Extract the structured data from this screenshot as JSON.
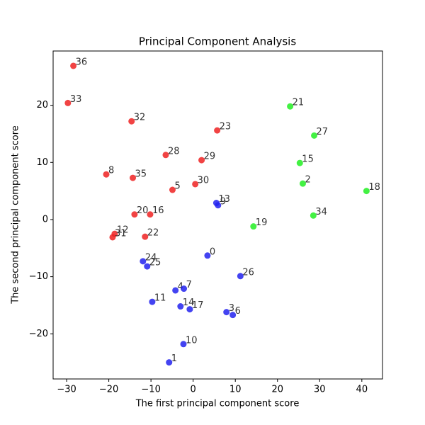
{
  "chart_data": {
    "type": "scatter",
    "title": "Principal Component Analysis",
    "x_label": "The first principal component score",
    "y_label": "The second principal component score",
    "xlim": [
      -33.2,
      44.9
    ],
    "ylim": [
      -27.9,
      29.5
    ],
    "xticks": [
      {
        "value": -30,
        "label": "−30"
      },
      {
        "value": -20,
        "label": "−20"
      },
      {
        "value": -10,
        "label": "−10"
      },
      0,
      10,
      20,
      30,
      40
    ],
    "yticks": [
      {
        "value": -20,
        "label": "−20"
      },
      {
        "value": -10,
        "label": "−10"
      },
      0,
      10,
      20
    ],
    "series": [
      {
        "color": "#ee2222",
        "labels": [
          "36",
          "33",
          "32",
          "23",
          "28",
          "29",
          "8",
          "35",
          "5",
          "30",
          "20",
          "16",
          "12",
          "31",
          "22"
        ],
        "x": [
          -28.4,
          -29.7,
          -14.6,
          5.7,
          -6.5,
          2.0,
          -20.6,
          -14.3,
          -4.9,
          0.5,
          -13.9,
          -10.2,
          -18.6,
          -19.1,
          -11.4
        ],
        "values": [
          26.9,
          20.4,
          17.2,
          15.6,
          11.3,
          10.4,
          7.9,
          7.3,
          5.2,
          6.2,
          0.9,
          0.9,
          -2.5,
          -3.1,
          -3.0
        ]
      },
      {
        "color": "#22ee22",
        "labels": [
          "21",
          "27",
          "15",
          "2",
          "18",
          "34",
          "19"
        ],
        "x": [
          23.0,
          28.7,
          25.3,
          26.0,
          41.1,
          28.5,
          14.3
        ],
        "values": [
          19.8,
          14.7,
          9.9,
          6.3,
          5.0,
          0.7,
          -1.2
        ]
      },
      {
        "color": "#2222ee",
        "labels": [
          "13",
          "9",
          "0",
          "26",
          "24",
          "25",
          "4",
          "7",
          "11",
          "14",
          "17",
          "3",
          "6",
          "10",
          "1"
        ],
        "x": [
          5.5,
          5.9,
          3.4,
          11.2,
          -11.9,
          -10.9,
          -4.2,
          -2.2,
          -9.7,
          -3.0,
          -0.8,
          7.9,
          9.4,
          -2.3,
          -5.7
        ],
        "values": [
          2.9,
          2.5,
          -6.3,
          -9.9,
          -7.3,
          -8.2,
          -12.4,
          -12.1,
          -14.4,
          -15.2,
          -15.7,
          -16.2,
          -16.7,
          -21.8,
          -25.0
        ]
      }
    ]
  }
}
